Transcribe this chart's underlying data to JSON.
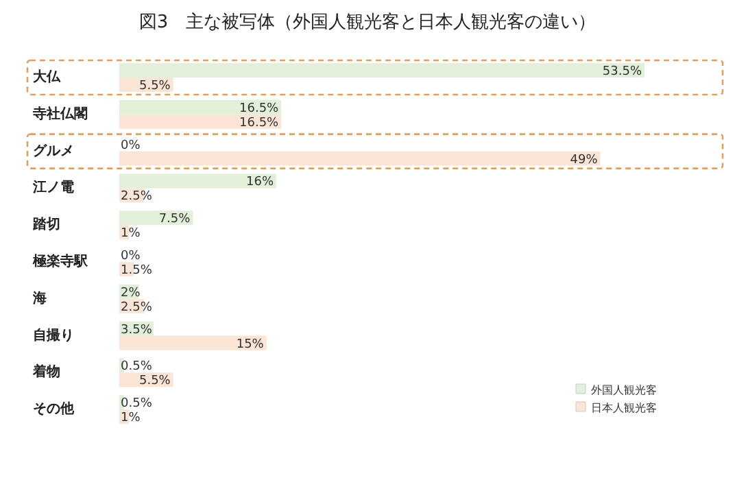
{
  "chart_data": {
    "type": "bar",
    "orientation": "horizontal",
    "title": "図3　主な被写体（外国人観光客と日本人観光客の違い）",
    "categories": [
      "大仏",
      "寺社仏閣",
      "グルメ",
      "江ノ電",
      "踏切",
      "極楽寺駅",
      "海",
      "自撮り",
      "着物",
      "その他"
    ],
    "series": [
      {
        "name": "外国人観光客",
        "color": "#e2f0d9",
        "values": [
          53.5,
          16.5,
          0,
          16,
          7.5,
          0,
          2,
          3.5,
          0.5,
          0.5
        ],
        "value_labels": [
          "53.5%",
          "16.5%",
          "0%",
          "16%",
          "7.5%",
          "0%",
          "2%",
          "3.5%",
          "0.5%",
          "0.5%"
        ]
      },
      {
        "name": "日本人観光客",
        "color": "#fbe5d6",
        "values": [
          5.5,
          16.5,
          49,
          2.5,
          1,
          1.5,
          2.5,
          15,
          5.5,
          1
        ],
        "value_labels": [
          "5.5%",
          "16.5%",
          "49%",
          "2.5%",
          "1%",
          "1.5%",
          "2.5%",
          "15%",
          "5.5%",
          "1%"
        ]
      }
    ],
    "legend": "bottom right"
  }
}
